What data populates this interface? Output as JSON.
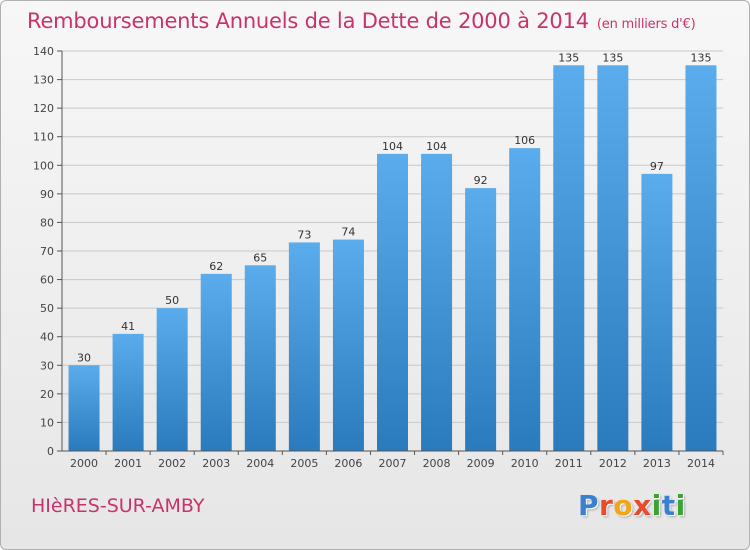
{
  "header": {
    "title": "Remboursements Annuels de la Dette de 2000 à 2014",
    "unit": "(en milliers d'€)"
  },
  "footer": {
    "commune": "HIèRES-SUR-AMBY",
    "logo_letters": [
      "P",
      "r",
      "o",
      "x",
      "i",
      "t",
      "i"
    ],
    "logo_colors": [
      "#3a7fd0",
      "#e84b2c",
      "#f2a516",
      "#e84b2c",
      "#39a335",
      "#3a7fd0",
      "#39a335"
    ]
  },
  "colors": {
    "title": "#c8336b",
    "bar_top": "#5aacec",
    "bar_bottom": "#2a7bbd",
    "axis": "#555555",
    "grid": "#c8c8c8"
  },
  "chart_data": {
    "type": "bar",
    "categories": [
      "2000",
      "2001",
      "2002",
      "2003",
      "2004",
      "2005",
      "2006",
      "2007",
      "2008",
      "2009",
      "2010",
      "2011",
      "2012",
      "2013",
      "2014"
    ],
    "values": [
      30,
      41,
      50,
      62,
      65,
      73,
      74,
      104,
      104,
      92,
      106,
      135,
      135,
      97,
      135
    ],
    "title": "Remboursements Annuels de la Dette de 2000 à 2014",
    "unit": "(en milliers d'€)",
    "xlabel": "",
    "ylabel": "",
    "ylim": [
      0,
      140
    ],
    "yticks": [
      0,
      10,
      20,
      30,
      40,
      50,
      60,
      70,
      80,
      90,
      100,
      110,
      120,
      130,
      140
    ],
    "grid": true,
    "data_labels": true
  }
}
